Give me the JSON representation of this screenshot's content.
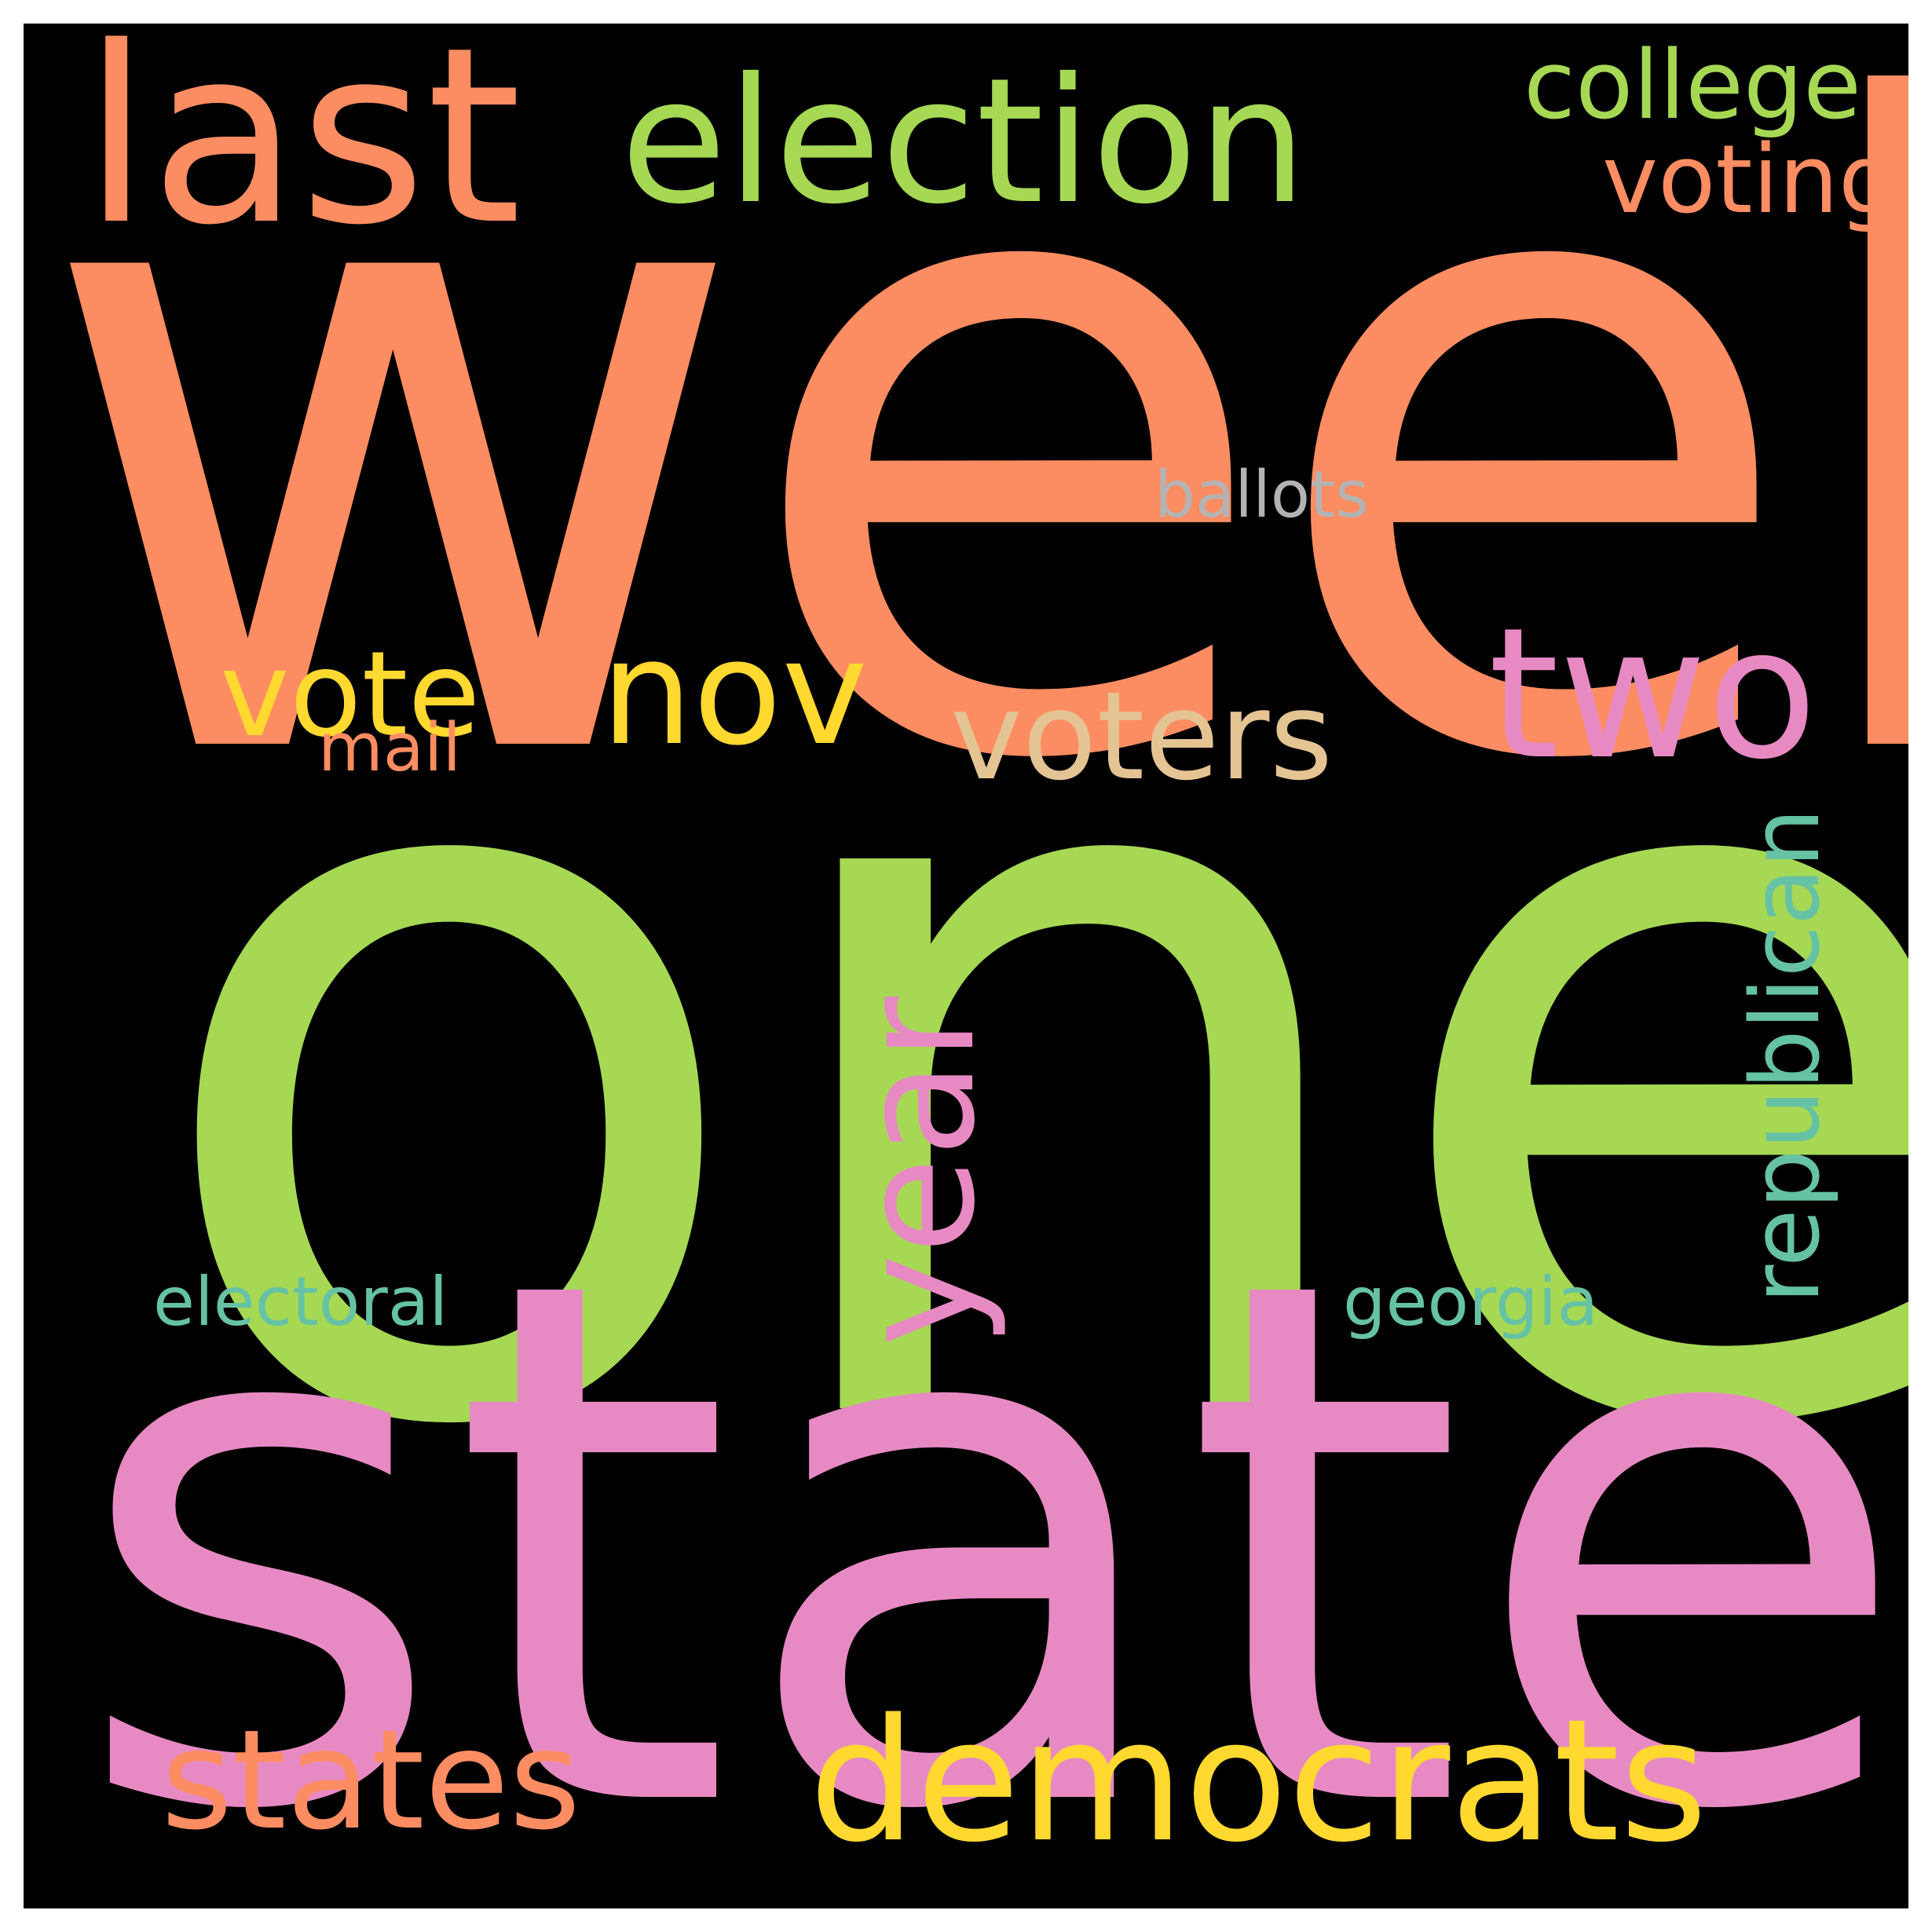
{
  "wordcloud": {
    "words": [
      {
        "text": "week",
        "color": "#fc8d62"
      },
      {
        "text": "one",
        "color": "#a6d854"
      },
      {
        "text": "state",
        "color": "#e78ac3"
      },
      {
        "text": "last",
        "color": "#fc8d62"
      },
      {
        "text": "election",
        "color": "#a6d854"
      },
      {
        "text": "college",
        "color": "#a6d854"
      },
      {
        "text": "voting",
        "color": "#fc8d62"
      },
      {
        "text": "ballots",
        "color": "#b3b3b3"
      },
      {
        "text": "vote",
        "color": "#ffd92f"
      },
      {
        "text": "nov",
        "color": "#ffd92f"
      },
      {
        "text": "two",
        "color": "#e78ac3"
      },
      {
        "text": "voters",
        "color": "#e5c494"
      },
      {
        "text": "mail",
        "color": "#fc8d62"
      },
      {
        "text": "year",
        "color": "#e78ac3"
      },
      {
        "text": "republican",
        "color": "#66c2a5"
      },
      {
        "text": "electoral",
        "color": "#66c2a5"
      },
      {
        "text": "georgia",
        "color": "#66c2a5"
      },
      {
        "text": "states",
        "color": "#fc8d62"
      },
      {
        "text": "democrats",
        "color": "#ffd92f"
      }
    ],
    "background": "#000000"
  }
}
